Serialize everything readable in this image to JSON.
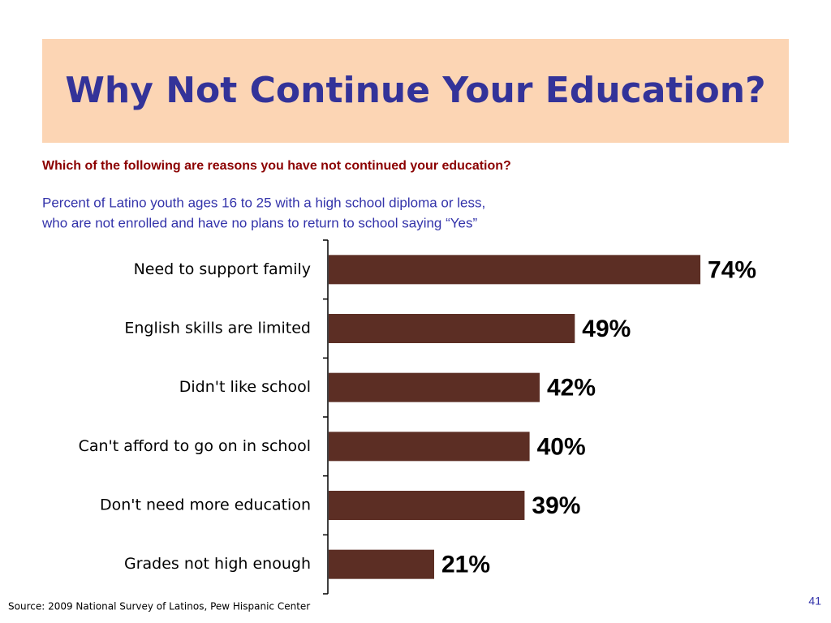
{
  "chart_data": {
    "type": "bar",
    "orientation": "horizontal",
    "title": "Why Not Continue Your Education?",
    "subtitle": "Which of the following are reasons you have not continued your education?",
    "note": [
      "Percent of Latino youth ages 16 to 25 with a high school diploma or less,",
      "who are not enrolled and have no plans to return to school saying “Yes”"
    ],
    "categories": [
      "Need to support family",
      "English skills are limited",
      "Didn't like school",
      "Can't afford to go on in school",
      "Don't need more education",
      "Grades not high enough"
    ],
    "values": [
      74,
      49,
      42,
      40,
      39,
      21
    ],
    "value_labels": [
      "74%",
      "49%",
      "42%",
      "40%",
      "39%",
      "21%"
    ],
    "color": "#5c2e24"
  },
  "footer": {
    "source": "Source: 2009 National Survey of Latinos, Pew Hispanic Center",
    "page_number": "41"
  }
}
